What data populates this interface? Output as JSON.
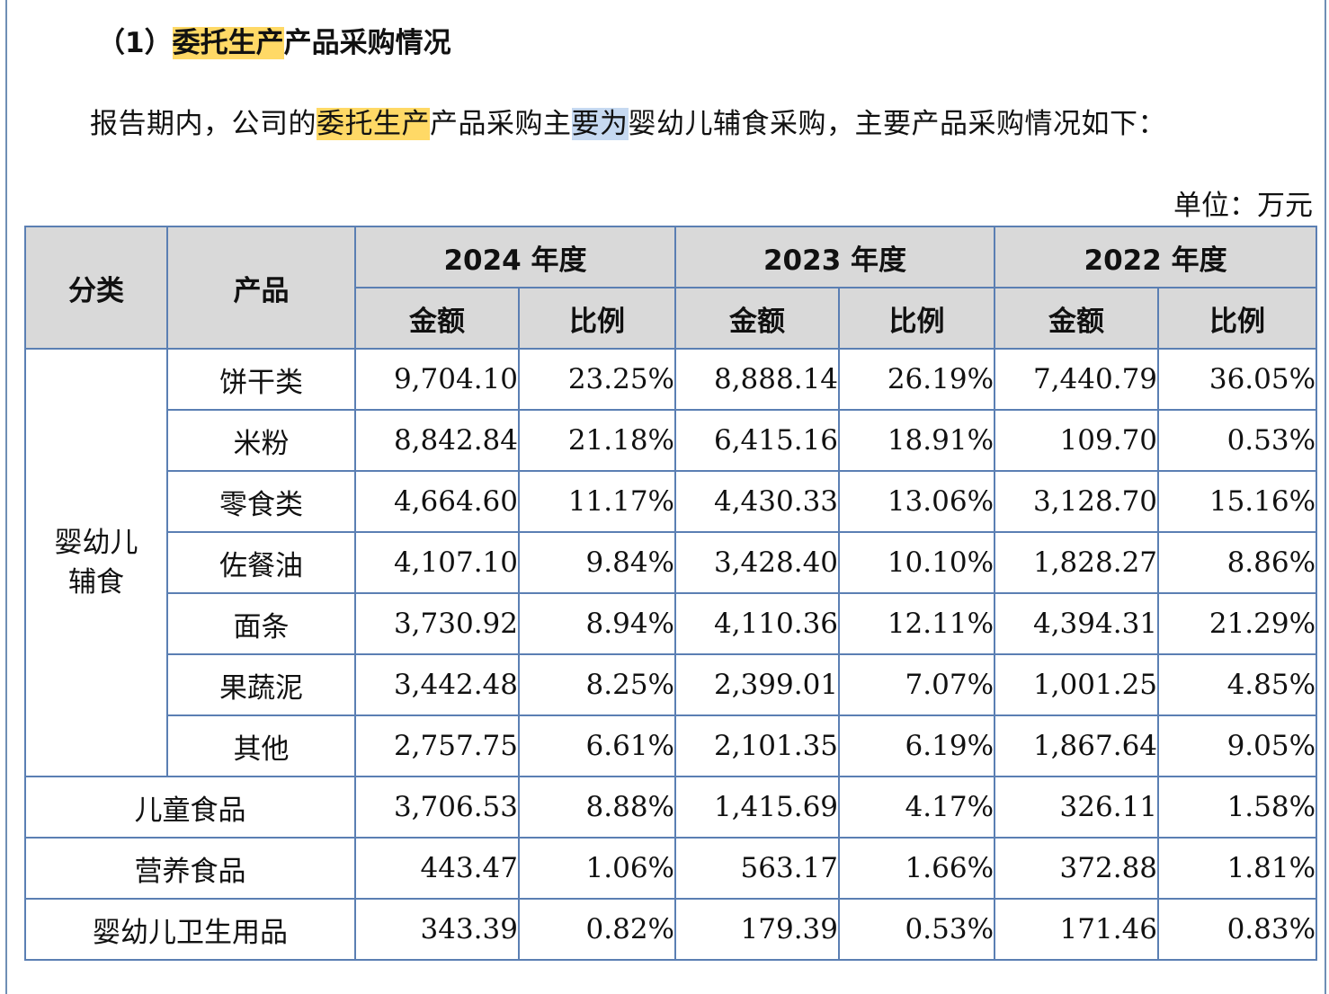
{
  "heading": {
    "prefix": "（1）",
    "highlight": "委托生产",
    "suffix": "产品采购情况"
  },
  "paragraph": {
    "p1": "报告期内，公司的",
    "hl1": "委托生产",
    "p2": "产品采购主",
    "hl2": "要为",
    "p3": "婴幼儿辅食采购，主要产品采购情况如下："
  },
  "unit": "单位：万元",
  "table": {
    "header": {
      "category": "分类",
      "product": "产品",
      "years": [
        "2024 年度",
        "2023 年度",
        "2022 年度"
      ],
      "amount": "金额",
      "ratio": "比例"
    },
    "group_category": "婴幼儿辅食",
    "group_rows": [
      {
        "product": "饼干类",
        "v": [
          "9,704.10",
          "23.25%",
          "8,888.14",
          "26.19%",
          "7,440.79",
          "36.05%"
        ]
      },
      {
        "product": "米粉",
        "v": [
          "8,842.84",
          "21.18%",
          "6,415.16",
          "18.91%",
          "109.70",
          "0.53%"
        ]
      },
      {
        "product": "零食类",
        "v": [
          "4,664.60",
          "11.17%",
          "4,430.33",
          "13.06%",
          "3,128.70",
          "15.16%"
        ]
      },
      {
        "product": "佐餐油",
        "v": [
          "4,107.10",
          "9.84%",
          "3,428.40",
          "10.10%",
          "1,828.27",
          "8.86%"
        ]
      },
      {
        "product": "面条",
        "v": [
          "3,730.92",
          "8.94%",
          "4,110.36",
          "12.11%",
          "4,394.31",
          "21.29%"
        ]
      },
      {
        "product": "果蔬泥",
        "v": [
          "3,442.48",
          "8.25%",
          "2,399.01",
          "7.07%",
          "1,001.25",
          "4.85%"
        ]
      },
      {
        "product": "其他",
        "v": [
          "2,757.75",
          "6.61%",
          "2,101.35",
          "6.19%",
          "1,867.64",
          "9.05%"
        ]
      }
    ],
    "other_rows": [
      {
        "category": "儿童食品",
        "v": [
          "3,706.53",
          "8.88%",
          "1,415.69",
          "4.17%",
          "326.11",
          "1.58%"
        ]
      },
      {
        "category": "营养食品",
        "v": [
          "443.47",
          "1.06%",
          "563.17",
          "1.66%",
          "372.88",
          "1.81%"
        ]
      },
      {
        "category": "婴幼儿卫生用品",
        "v": [
          "343.39",
          "0.82%",
          "179.39",
          "0.53%",
          "171.46",
          "0.83%"
        ]
      }
    ]
  }
}
